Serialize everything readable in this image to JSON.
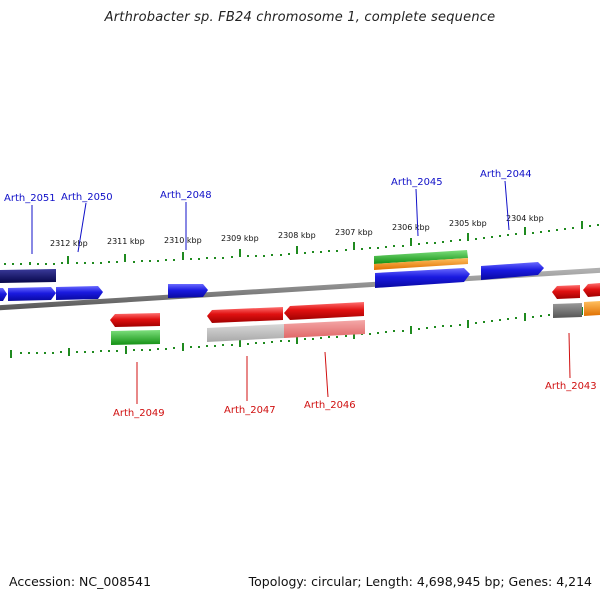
{
  "title": "Arthrobacter sp. FB24 chromosome 1, complete sequence",
  "footer": {
    "accession": "Accession: NC_008541",
    "summary": "Topology: circular; Length: 4,698,945 bp; Genes: 4,214"
  },
  "ruler_labels": [
    "2312 kbp",
    "2311 kbp",
    "2310 kbp",
    "2309 kbp",
    "2308 kbp",
    "2307 kbp",
    "2306 kbp",
    "2305 kbp",
    "2304 kbp"
  ],
  "gene_labels_top": [
    "Arth_2051",
    "Arth_2050",
    "Arth_2048",
    "Arth_2045",
    "Arth_2044"
  ],
  "gene_labels_bottom": [
    "Arth_2049",
    "Arth_2047",
    "Arth_2046",
    "Arth_2043"
  ],
  "colors": {
    "forward_cds": "#1a1ae0",
    "reverse_cds": "#e01010",
    "dark_blue": "#0a0a6a",
    "green": "#22b022",
    "orange": "#ff8c00",
    "gray": "#777777",
    "pink": "#e88080",
    "backbone": "#888888",
    "tick": "#1f8a1f",
    "label_blue": "#1010c8",
    "label_red": "#d01010"
  }
}
